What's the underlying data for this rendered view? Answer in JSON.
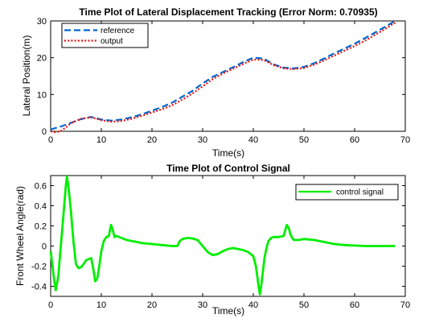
{
  "chart_data": [
    {
      "type": "line",
      "title": "Time Plot of Lateral Displacement Tracking (Error Norm: 0.70935)",
      "xlabel": "Time(s)",
      "ylabel": "Lateral Position(m)",
      "xlim": [
        0,
        70
      ],
      "ylim": [
        0,
        30
      ],
      "xticks": [
        0,
        10,
        20,
        30,
        40,
        50,
        60,
        70
      ],
      "yticks": [
        0,
        10,
        20,
        30
      ],
      "legend_position": "top-left",
      "grid": false,
      "series": [
        {
          "name": "reference",
          "color": "#0066cc",
          "style": "dashed",
          "x": [
            0,
            2,
            4,
            6,
            8,
            10,
            12,
            14,
            16,
            18,
            20,
            22,
            24,
            26,
            28,
            30,
            32,
            34,
            36,
            38,
            40,
            42,
            44,
            46,
            48,
            50,
            52,
            54,
            56,
            58,
            60,
            62,
            64,
            66,
            68
          ],
          "y": [
            0.5,
            1.3,
            2.3,
            3.3,
            3.9,
            3.2,
            2.9,
            3.2,
            3.8,
            4.6,
            5.6,
            6.6,
            7.8,
            9.4,
            11.0,
            13.0,
            14.8,
            16.1,
            17.4,
            18.8,
            20.0,
            19.8,
            18.2,
            17.3,
            17.1,
            17.5,
            18.5,
            19.8,
            21.2,
            22.5,
            23.8,
            25.3,
            26.8,
            28.4,
            30.0
          ]
        },
        {
          "name": "output",
          "color": "#ee1111",
          "style": "dotted",
          "x": [
            0,
            1,
            2,
            3,
            4,
            6,
            8,
            10,
            12,
            14,
            16,
            18,
            20,
            22,
            24,
            26,
            28,
            30,
            32,
            34,
            36,
            38,
            40,
            42,
            44,
            46,
            48,
            50,
            52,
            54,
            56,
            58,
            60,
            62,
            64,
            66,
            68
          ],
          "y": [
            0,
            -0.3,
            0.1,
            1.0,
            2.2,
            3.4,
            3.8,
            3.0,
            2.6,
            2.8,
            3.4,
            4.2,
            5.1,
            6.0,
            7.1,
            8.6,
            10.3,
            12.2,
            14.2,
            15.7,
            17.0,
            18.3,
            19.5,
            19.4,
            18.0,
            17.1,
            16.9,
            17.2,
            18.1,
            19.3,
            20.6,
            21.9,
            23.2,
            24.6,
            26.2,
            27.8,
            29.5
          ]
        }
      ]
    },
    {
      "type": "line",
      "title": "Time Plot of Control Signal",
      "xlabel": "Time(s)",
      "ylabel": "Front Wheel Angle(rad)",
      "xlim": [
        0,
        70
      ],
      "ylim": [
        -0.5,
        0.7
      ],
      "xticks": [
        0,
        10,
        20,
        30,
        40,
        50,
        60,
        70
      ],
      "yticks": [
        -0.4,
        -0.2,
        0,
        0.2,
        0.4,
        0.6
      ],
      "legend_position": "top-right",
      "grid": false,
      "series": [
        {
          "name": "control signal",
          "color": "#00ee00",
          "style": "solid",
          "x": [
            0,
            0.6,
            1.0,
            1.5,
            2.0,
            2.5,
            3.0,
            3.2,
            3.5,
            4.0,
            4.5,
            5.0,
            5.5,
            6.0,
            6.5,
            7.0,
            8.0,
            8.4,
            8.8,
            9.2,
            9.6,
            10.0,
            10.5,
            11.0,
            11.5,
            11.9,
            12.2,
            12.6,
            13.0,
            14.0,
            15.0,
            16.0,
            18.0,
            20.0,
            22.0,
            24.0,
            25.0,
            25.5,
            26.0,
            27.0,
            28.0,
            29.0,
            30.0,
            31.0,
            32.0,
            33.0,
            34.0,
            35.0,
            36.0,
            37.0,
            38.0,
            39.0,
            40.0,
            40.5,
            41.0,
            41.3,
            41.6,
            41.9,
            42.2,
            42.6,
            43.0,
            43.5,
            44.0,
            45.0,
            46.0,
            46.6,
            47.0,
            47.3,
            47.7,
            48.0,
            49.0,
            50.0,
            52.0,
            54.0,
            56.0,
            58.0,
            60.0,
            62.0,
            64.0,
            66.0,
            68.0
          ],
          "y": [
            -0.05,
            -0.3,
            -0.44,
            -0.3,
            0.0,
            0.3,
            0.6,
            0.69,
            0.6,
            0.35,
            0.05,
            -0.18,
            -0.22,
            -0.21,
            -0.18,
            -0.14,
            -0.12,
            -0.22,
            -0.35,
            -0.32,
            -0.2,
            -0.05,
            0.05,
            0.09,
            0.1,
            0.21,
            0.17,
            0.09,
            0.1,
            0.08,
            0.06,
            0.05,
            0.03,
            0.02,
            0.01,
            0.0,
            0.0,
            0.05,
            0.07,
            0.08,
            0.075,
            0.06,
            0.0,
            -0.06,
            -0.09,
            -0.08,
            -0.05,
            -0.03,
            -0.02,
            -0.03,
            -0.04,
            -0.06,
            -0.1,
            -0.2,
            -0.38,
            -0.48,
            -0.38,
            -0.25,
            -0.12,
            -0.02,
            0.05,
            0.08,
            0.09,
            0.09,
            0.1,
            0.21,
            0.18,
            0.12,
            0.08,
            0.06,
            0.06,
            0.07,
            0.06,
            0.04,
            0.02,
            0.01,
            0.005,
            0.0,
            0.0,
            0.0,
            0.0
          ]
        }
      ]
    }
  ]
}
